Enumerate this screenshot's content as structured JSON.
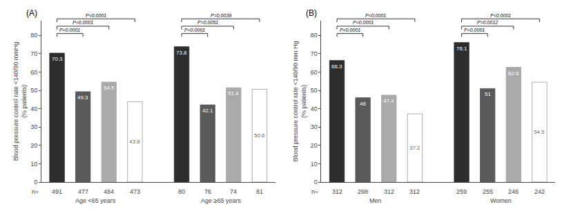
{
  "chart_data": [
    {
      "type": "bar",
      "label": "(A)",
      "ylabel": "Blood pressure control rate <140/90 mmHg\n(% patients)",
      "ylim": [
        0,
        88
      ],
      "yticks": [
        0,
        10,
        20,
        30,
        40,
        50,
        60,
        70,
        80
      ],
      "grid": false,
      "data_labels": true,
      "n_prefix": "n=",
      "groups": [
        {
          "name": "Age <65 years",
          "categories": [
            "491",
            "477",
            "484",
            "473"
          ],
          "values": [
            70.3,
            49.3,
            54.5,
            43.8
          ],
          "colors": [
            "#2d2d2d",
            "#5a5a5a",
            "#aaaaaa",
            "#ffffff"
          ],
          "brackets": [
            {
              "bars": [
                0,
                1
              ],
              "label": "P<0.0001"
            },
            {
              "bars": [
                0,
                2
              ],
              "label": "P<0.0001"
            },
            {
              "bars": [
                0,
                3
              ],
              "label": "P<0.0001"
            }
          ]
        },
        {
          "name": "Age ≥65 years",
          "categories": [
            "80",
            "76",
            "74",
            "81"
          ],
          "values": [
            73.8,
            42.1,
            51.4,
            50.6
          ],
          "colors": [
            "#2d2d2d",
            "#5a5a5a",
            "#aaaaaa",
            "#ffffff"
          ],
          "brackets": [
            {
              "bars": [
                0,
                1
              ],
              "label": "P<0.0001"
            },
            {
              "bars": [
                0,
                2
              ],
              "label": "P=0.0051"
            },
            {
              "bars": [
                0,
                3
              ],
              "label": "P=0.0039"
            }
          ]
        }
      ]
    },
    {
      "type": "bar",
      "label": "(B)",
      "ylabel": "Blood pressure control rate <140/90 mm Hg\n(% patients)",
      "ylim": [
        0,
        88
      ],
      "yticks": [
        0,
        10,
        20,
        30,
        40,
        50,
        60,
        70,
        80
      ],
      "grid": false,
      "data_labels": true,
      "n_prefix": "n=",
      "groups": [
        {
          "name": "Men",
          "categories": [
            "312",
            "298",
            "312",
            "312"
          ],
          "values": [
            66.3,
            46.0,
            47.4,
            37.2
          ],
          "colors": [
            "#2d2d2d",
            "#5a5a5a",
            "#aaaaaa",
            "#ffffff"
          ],
          "brackets": [
            {
              "bars": [
                0,
                1
              ],
              "label": "P<0.0001"
            },
            {
              "bars": [
                0,
                2
              ],
              "label": "P<0.0001"
            },
            {
              "bars": [
                0,
                3
              ],
              "label": "P<0.0001"
            }
          ]
        },
        {
          "name": "Women",
          "categories": [
            "259",
            "255",
            "246",
            "242"
          ],
          "values": [
            76.1,
            51.0,
            62.6,
            54.5
          ],
          "colors": [
            "#2d2d2d",
            "#5a5a5a",
            "#aaaaaa",
            "#ffffff"
          ],
          "brackets": [
            {
              "bars": [
                0,
                1
              ],
              "label": "P<0.0001"
            },
            {
              "bars": [
                0,
                2
              ],
              "label": "P=0.0012"
            },
            {
              "bars": [
                0,
                3
              ],
              "label": "P<0.0001"
            }
          ]
        }
      ]
    }
  ]
}
